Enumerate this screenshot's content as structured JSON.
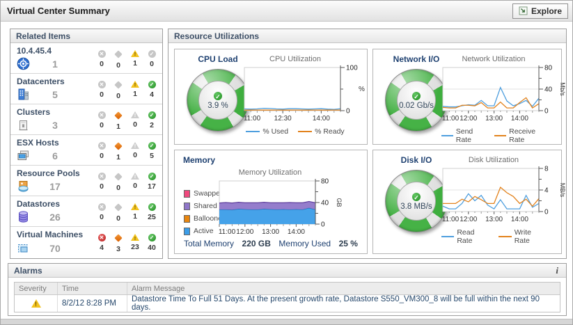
{
  "title_bar": {
    "title": "Virtual Center Summary",
    "explore_label": "Explore"
  },
  "related_items": {
    "header": "Related Items",
    "rows": [
      {
        "name": "10.4.45.4",
        "icon": "vcenter-icon",
        "count": "1",
        "statuses": [
          {
            "level": "fatal",
            "count": "0",
            "active": false
          },
          {
            "level": "critical",
            "count": "0",
            "active": false
          },
          {
            "level": "warning",
            "count": "1",
            "active": true
          },
          {
            "level": "normal",
            "count": "0",
            "active": false
          }
        ]
      },
      {
        "name": "Datacenters",
        "icon": "datacenter-icon",
        "count": "5",
        "statuses": [
          {
            "level": "fatal",
            "count": "0",
            "active": false
          },
          {
            "level": "critical",
            "count": "0",
            "active": false
          },
          {
            "level": "warning",
            "count": "1",
            "active": true
          },
          {
            "level": "normal",
            "count": "4",
            "active": true
          }
        ]
      },
      {
        "name": "Clusters",
        "icon": "cluster-icon",
        "count": "3",
        "statuses": [
          {
            "level": "fatal",
            "count": "0",
            "active": false
          },
          {
            "level": "critical",
            "count": "1",
            "active": true
          },
          {
            "level": "warning",
            "count": "0",
            "active": false
          },
          {
            "level": "normal",
            "count": "2",
            "active": true
          }
        ]
      },
      {
        "name": "ESX Hosts",
        "icon": "esx-host-icon",
        "count": "6",
        "statuses": [
          {
            "level": "fatal",
            "count": "0",
            "active": false
          },
          {
            "level": "critical",
            "count": "1",
            "active": true
          },
          {
            "level": "warning",
            "count": "0",
            "active": false
          },
          {
            "level": "normal",
            "count": "5",
            "active": true
          }
        ]
      },
      {
        "name": "Resource Pools",
        "icon": "resource-pool-icon",
        "count": "17",
        "statuses": [
          {
            "level": "fatal",
            "count": "0",
            "active": false
          },
          {
            "level": "critical",
            "count": "0",
            "active": false
          },
          {
            "level": "warning",
            "count": "0",
            "active": false
          },
          {
            "level": "normal",
            "count": "17",
            "active": true
          }
        ]
      },
      {
        "name": "Datastores",
        "icon": "datastore-icon",
        "count": "26",
        "statuses": [
          {
            "level": "fatal",
            "count": "0",
            "active": false
          },
          {
            "level": "critical",
            "count": "0",
            "active": false
          },
          {
            "level": "warning",
            "count": "1",
            "active": true
          },
          {
            "level": "normal",
            "count": "25",
            "active": true
          }
        ]
      },
      {
        "name": "Virtual Machines",
        "icon": "vm-icon",
        "count": "70",
        "statuses": [
          {
            "level": "fatal",
            "count": "4",
            "active": true
          },
          {
            "level": "critical",
            "count": "3",
            "active": true
          },
          {
            "level": "warning",
            "count": "23",
            "active": true
          },
          {
            "level": "normal",
            "count": "40",
            "active": true
          }
        ]
      }
    ]
  },
  "resource_utilizations": {
    "header": "Resource Utilizations",
    "cpu": {
      "title": "CPU Load",
      "gauge_value": "3.9 %"
    },
    "network": {
      "title": "Network I/O",
      "gauge_value": "0.02 Gb/s"
    },
    "memory": {
      "title": "Memory",
      "total_memory_label": "Total Memory",
      "total_memory_value": "220 GB",
      "memory_used_label": "Memory Used",
      "memory_used_value": "25 %"
    },
    "disk": {
      "title": "Disk I/O",
      "gauge_value": "3.8 MB/s"
    }
  },
  "chart_data": [
    {
      "id": "cpu",
      "type": "line",
      "title": "CPU Utilization",
      "unit": "%",
      "ylim": [
        0,
        100
      ],
      "yticks": [
        {
          "v": 0,
          "label": "0"
        },
        {
          "v": 50,
          "label": ""
        },
        {
          "v": 100,
          "label": "100"
        }
      ],
      "grid": [],
      "x_labels": [
        {
          "i": 0,
          "label": "11:00"
        },
        {
          "i": 6,
          "label": "12:30"
        },
        {
          "i": 12,
          "label": "14:00"
        }
      ],
      "legend_position": "bottom",
      "series": [
        {
          "name": "% Used",
          "color": "#4d9ede",
          "values": [
            4,
            3.5,
            4,
            5.5,
            5,
            4,
            3.5,
            4.5,
            4.5,
            4,
            3.5,
            4,
            4.5,
            3.5,
            3,
            4.5
          ]
        },
        {
          "name": "% Ready",
          "color": "#e2821c",
          "values": [
            1.3,
            1.3,
            1.4,
            1.3,
            1.3,
            1.4,
            1.3,
            1.3,
            1.4,
            1.3,
            1.3,
            1.4,
            1.3,
            1.3,
            1.4,
            1.3
          ]
        }
      ]
    },
    {
      "id": "network",
      "type": "line",
      "title": "Network Utilization",
      "unit": "Mb/s",
      "ylim": [
        0,
        80
      ],
      "yticks": [
        {
          "v": 0,
          "label": "0"
        },
        {
          "v": 20,
          "label": ""
        },
        {
          "v": 40,
          "label": "40"
        },
        {
          "v": 60,
          "label": ""
        },
        {
          "v": 80,
          "label": "80"
        }
      ],
      "grid": [
        40
      ],
      "x_labels": [
        {
          "i": 0,
          "label": "11:00"
        },
        {
          "i": 4,
          "label": "12:00"
        },
        {
          "i": 8,
          "label": "13:00"
        },
        {
          "i": 12,
          "label": "14:00"
        }
      ],
      "legend_position": "bottom",
      "series": [
        {
          "name": "Send Rate",
          "color": "#4d9ede",
          "values": [
            8,
            7,
            7,
            9,
            11,
            10,
            19,
            9,
            9,
            43,
            18,
            9,
            13,
            19,
            8,
            23
          ]
        },
        {
          "name": "Receive Rate",
          "color": "#e2821c",
          "values": [
            6,
            5,
            5,
            10,
            10,
            9,
            15,
            5,
            5,
            16,
            5,
            5,
            15,
            24,
            5,
            13
          ]
        }
      ]
    },
    {
      "id": "memory",
      "type": "area",
      "title": "Memory Utilization",
      "unit": "GB",
      "ylim": [
        0,
        80
      ],
      "yticks": [
        {
          "v": 0,
          "label": "0"
        },
        {
          "v": 20,
          "label": ""
        },
        {
          "v": 40,
          "label": "40"
        },
        {
          "v": 60,
          "label": ""
        },
        {
          "v": 80,
          "label": "80"
        }
      ],
      "grid": [
        40
      ],
      "x_labels": [
        {
          "i": 0,
          "label": "11:00"
        },
        {
          "i": 4,
          "label": "12:00"
        },
        {
          "i": 8,
          "label": "13:00"
        },
        {
          "i": 12,
          "label": "14:00"
        }
      ],
      "legend_position": "left",
      "legend_order": [
        "Swapped",
        "Shared",
        "Ballooned",
        "Active"
      ],
      "series": [
        {
          "name": "Active",
          "color": "#3b9de8",
          "edge": "#1a6fb5",
          "values": [
            27,
            27,
            26.5,
            28,
            27.5,
            27,
            27,
            28,
            27.5,
            27,
            27.5,
            27,
            27.5,
            27,
            30,
            27
          ]
        },
        {
          "name": "Ballooned",
          "color": "#e8860f",
          "edge": "#b56306",
          "values": [
            0,
            0,
            0,
            0,
            0,
            0,
            0,
            0,
            0,
            0,
            0,
            0,
            0,
            0,
            0,
            0
          ]
        },
        {
          "name": "Shared",
          "color": "#8f76c9",
          "edge": "#5f3f9e",
          "values": [
            12,
            13,
            12.5,
            12.5,
            12,
            12.5,
            12.5,
            12.5,
            12,
            12.5,
            12,
            13,
            12,
            12.5,
            12,
            12.5
          ]
        },
        {
          "name": "Swapped",
          "color": "#f0497e",
          "edge": "#c21e55",
          "values": [
            0,
            0,
            0,
            0,
            0,
            0,
            0,
            0,
            0,
            0,
            0,
            0,
            0,
            0,
            0,
            0
          ]
        }
      ]
    },
    {
      "id": "disk",
      "type": "line",
      "title": "Disk Utilization",
      "unit": "MB/s",
      "ylim": [
        0,
        8
      ],
      "yticks": [
        {
          "v": 0,
          "label": "0"
        },
        {
          "v": 2,
          "label": ""
        },
        {
          "v": 4,
          "label": "4"
        },
        {
          "v": 6,
          "label": ""
        },
        {
          "v": 8,
          "label": "8"
        }
      ],
      "grid": [
        4
      ],
      "x_labels": [
        {
          "i": 0,
          "label": "11:00"
        },
        {
          "i": 4,
          "label": "12:00"
        },
        {
          "i": 8,
          "label": "13:00"
        },
        {
          "i": 12,
          "label": "14:00"
        }
      ],
      "legend_position": "bottom",
      "series": [
        {
          "name": "Read Rate",
          "color": "#4d9ede",
          "values": [
            1,
            0.5,
            0.5,
            1.5,
            3.3,
            2,
            3,
            1.2,
            0.5,
            2.2,
            0.5,
            0.5,
            0.5,
            3,
            0.8,
            1.5
          ]
        },
        {
          "name": "Write Rate",
          "color": "#e2821c",
          "values": [
            1.5,
            1.5,
            1.5,
            2.3,
            1.8,
            2.8,
            2.2,
            1.5,
            1.5,
            4.5,
            3.5,
            2.8,
            1.5,
            2.3,
            1,
            2.4
          ]
        }
      ]
    }
  ],
  "alarms": {
    "header": "Alarms",
    "info_label": "i",
    "columns": [
      "Severity",
      "Time",
      "Alarm Message"
    ],
    "rows": [
      {
        "severity": "warning",
        "time": "8/2/12 8:28 PM",
        "message": "Datastore Time To Full 51 Days. At the present growth rate, Datastore S550_VM300_8 will be full within the next 90 days."
      }
    ]
  },
  "colors": {
    "line_blue": "#4d9ede",
    "line_orange": "#e2821c",
    "status_fatal": "#b81e1e",
    "status_critical": "#d85f00",
    "status_warning": "#f2c31f",
    "status_normal": "#1d8c1d",
    "gauge_green": "#3fae3f"
  }
}
